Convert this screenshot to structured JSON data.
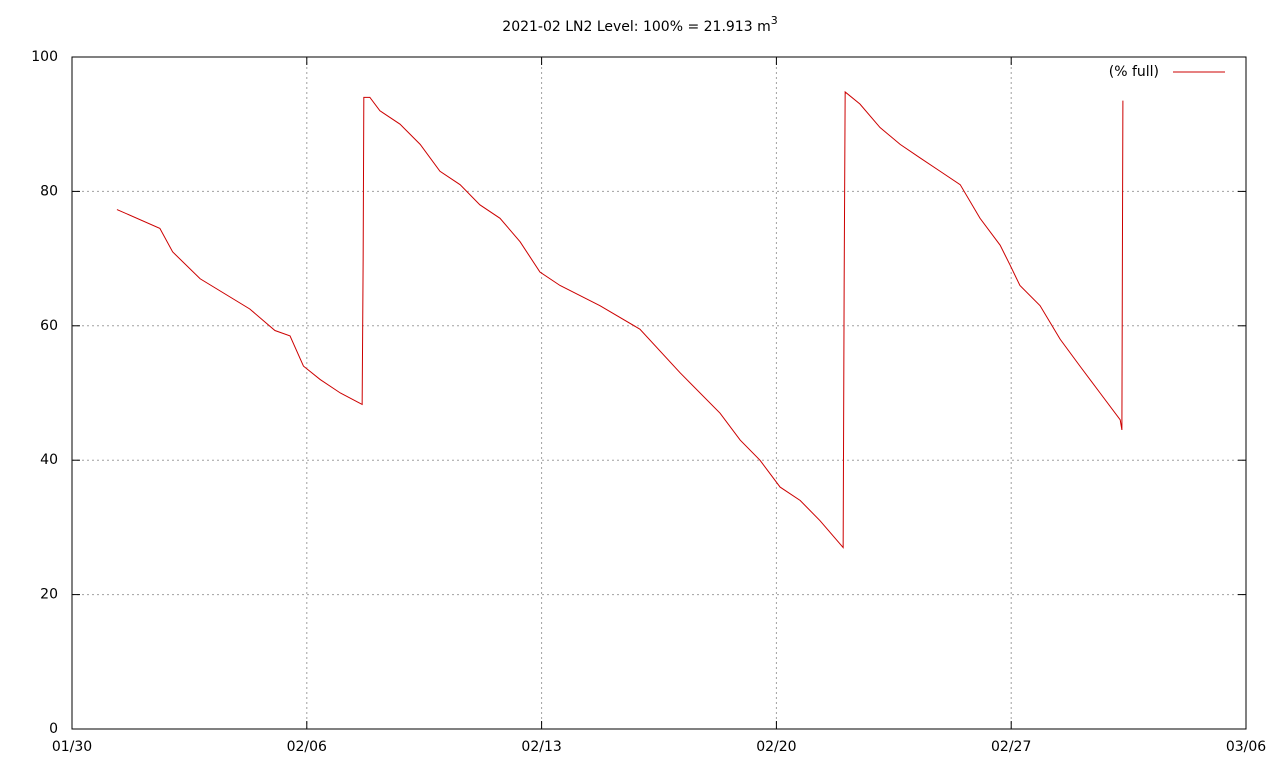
{
  "chart_data": {
    "type": "line",
    "title": "2021-02 LN2 Level: 100% = 21.913 m",
    "title_superscript": "3",
    "x": [
      1.34,
      2.62,
      3.0,
      3.82,
      5.3,
      6.05,
      6.5,
      6.9,
      7.4,
      8.0,
      8.65,
      8.68,
      8.7,
      8.88,
      9.18,
      9.78,
      10.38,
      10.97,
      11.57,
      12.16,
      12.76,
      13.36,
      13.95,
      14.55,
      15.74,
      16.93,
      18.13,
      19.32,
      19.92,
      20.51,
      21.11,
      21.71,
      22.3,
      22.99,
      23.02,
      23.05,
      23.49,
      24.09,
      24.69,
      25.28,
      25.88,
      26.48,
      27.07,
      27.67,
      27.97,
      28.26,
      28.86,
      29.46,
      30.05,
      30.65,
      31.25,
      31.3,
      31.32,
      31.33
    ],
    "series": [
      {
        "name": "(% full)",
        "color": "#cc0000",
        "values": [
          77.3,
          74.5,
          71,
          67,
          62.5,
          59.3,
          58.5,
          54,
          52,
          50,
          48.3,
          70,
          94,
          94,
          92,
          90,
          87,
          83,
          81,
          78,
          76,
          72.5,
          68,
          66,
          63,
          59.5,
          53,
          47,
          43,
          40,
          36,
          34,
          31,
          27,
          66.5,
          94.8,
          93,
          89.5,
          87,
          85,
          83,
          81,
          76,
          72,
          69,
          66,
          63,
          58,
          54,
          50,
          46,
          44.5,
          78,
          93.5
        ]
      }
    ],
    "xlim": [
      0,
      35
    ],
    "xticks": [
      {
        "value": 0,
        "label": "01/30"
      },
      {
        "value": 7,
        "label": "02/06"
      },
      {
        "value": 14,
        "label": "02/13"
      },
      {
        "value": 21,
        "label": "02/20"
      },
      {
        "value": 28,
        "label": "02/27"
      },
      {
        "value": 35,
        "label": "03/06"
      }
    ],
    "ylim": [
      0,
      100
    ],
    "yticks": [
      0,
      20,
      40,
      60,
      80,
      100
    ],
    "grid": true,
    "legend": "top-right"
  }
}
